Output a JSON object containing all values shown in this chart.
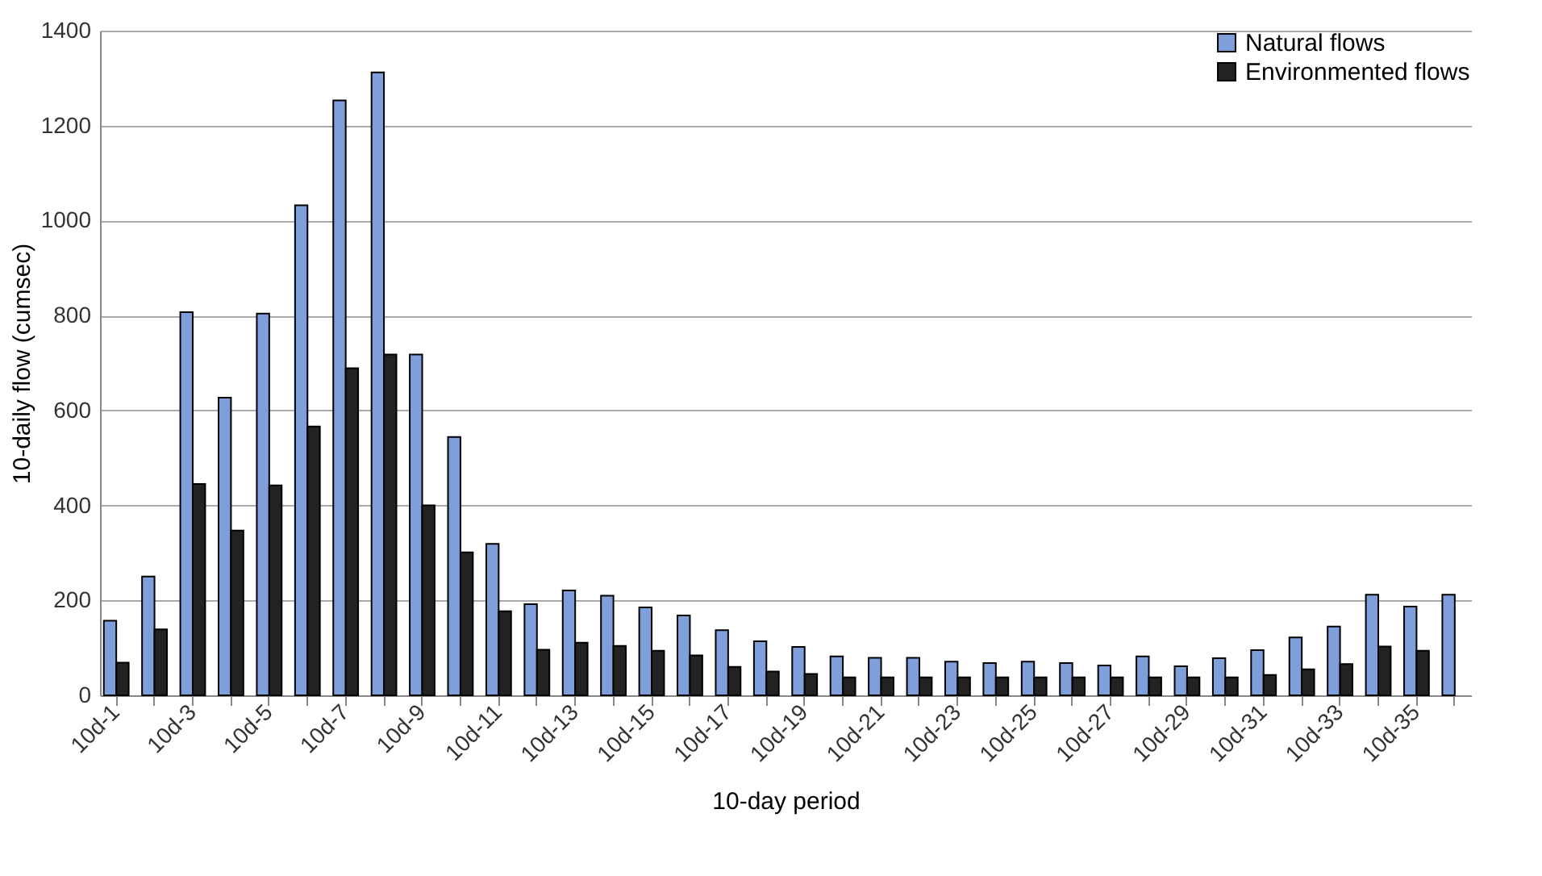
{
  "chart_data": {
    "type": "bar",
    "xlabel": "10-day period",
    "ylabel": "10-daily flow (cumsec)",
    "categories": [
      "10d-1",
      null,
      "10d-3",
      null,
      "10d-5",
      null,
      "10d-7",
      null,
      "10d-9",
      null,
      "10d-11",
      null,
      "10d-13",
      null,
      "10d-15",
      null,
      "10d-17",
      null,
      "10d-19",
      null,
      "10d-21",
      null,
      "10d-23",
      null,
      "10d-25",
      null,
      "10d-27",
      null,
      "10d-29",
      null,
      "10d-31",
      null,
      "10d-33",
      null,
      "10d-35",
      null
    ],
    "series": [
      {
        "name": "Natural flows",
        "color": "#7f9fdb",
        "values": [
          157,
          250,
          807,
          627,
          804,
          1032,
          1253,
          1312,
          718,
          544,
          319,
          192,
          221,
          210,
          185,
          168,
          137,
          114,
          102,
          82,
          79,
          79,
          71,
          68,
          71,
          68,
          63,
          82,
          61,
          78,
          95,
          122,
          145,
          212,
          187,
          212
        ]
      },
      {
        "name": "Environmented flows",
        "color": "#222222",
        "values": [
          69,
          139,
          445,
          347,
          442,
          566,
          689,
          718,
          400,
          301,
          177,
          96,
          111,
          104,
          94,
          84,
          60,
          50,
          45,
          38,
          38,
          38,
          38,
          38,
          38,
          38,
          38,
          38,
          38,
          38,
          43,
          55,
          66,
          103,
          94,
          null
        ]
      }
    ],
    "ylim": [
      0,
      1400
    ],
    "yticks": [
      0,
      200,
      400,
      600,
      800,
      1000,
      1200,
      1400
    ],
    "grid": "y",
    "legend": "top right"
  }
}
